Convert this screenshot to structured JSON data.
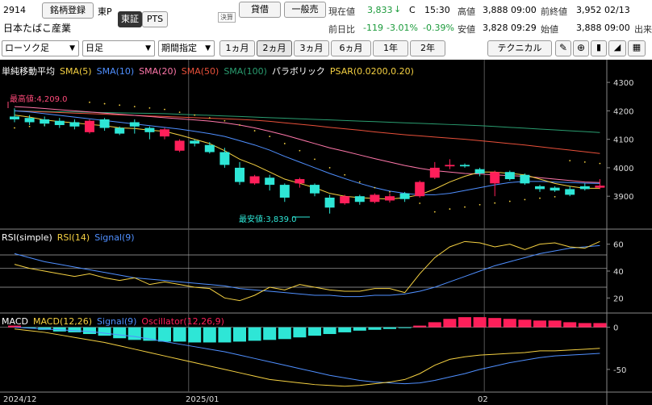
{
  "header": {
    "code": "2914",
    "search_button": "銘柄登録",
    "exchange_label": "東P",
    "exchange_tabs": [
      "東証",
      "PTS"
    ],
    "settlement_badge": "決算",
    "name": "日本たばこ産業",
    "lending_button": "貸借",
    "general_button": "一般売",
    "current_price_label": "現在値",
    "current_price": "3,833",
    "current_arrow": "↓",
    "current_flag": "C",
    "current_time": "15:30",
    "change_label": "前日比",
    "change_value": "-119",
    "change_pct": "-3.01%",
    "high_label": "高値",
    "high_value": "3,888 09:00",
    "low_label": "安値",
    "low_value": "3,828 09:29",
    "low_pct": "-0.39%",
    "prev_close_label": "前終値",
    "prev_close_value": "3,952 02/13",
    "open_label": "始値",
    "open_value": "3,888 09:00",
    "volume_label": "出来"
  },
  "toolbar": {
    "chart_type": "ローソク足",
    "period_type": "日足",
    "range_mode": "期間指定",
    "ranges": [
      "1ヵ月",
      "2ヵ月",
      "3ヵ月",
      "6ヵ月",
      "1年",
      "2年"
    ],
    "active_range": 1,
    "technical_button": "テクニカル"
  },
  "colors": {
    "bull": "#ff1f5a",
    "bear": "#2ee6d6",
    "sma5": "#f5d142",
    "sma10": "#4f8fff",
    "sma20": "#ff77aa",
    "sma50": "#e8503a",
    "sma100": "#2a9d70",
    "psar": "#f5d142",
    "rsi": "#f5d142",
    "signal": "#4f8fff",
    "macd": "#f5d142",
    "oscillator": "#ff1f5a",
    "oscillator_neg": "#2ee6d6"
  },
  "legends": {
    "main_title": "単純移動平均",
    "sma5": "SMA(5)",
    "sma10": "SMA(10)",
    "sma20": "SMA(20)",
    "sma50": "SMA(50)",
    "sma100": "SMA(100)",
    "psar_title": "パラボリック",
    "psar": "PSAR(0.0200,0.20)",
    "rsi_title": "RSI(simple)",
    "rsi": "RSI(14)",
    "rsi_signal": "Signal(9)",
    "macd_title": "MACD",
    "macd": "MACD(12,26)",
    "macd_signal": "Signal(9)",
    "oscillator": "Oscillator(12,26,9)"
  },
  "annotations": {
    "max_label": "最高値:4,209.0",
    "min_label": "最安値:3,839.0"
  },
  "chart_data": [
    {
      "type": "candlestick",
      "ylim": [
        3790,
        4340
      ],
      "yticks": [
        "4300",
        "4200",
        "4100",
        "4000",
        "3900"
      ],
      "xticks": [
        "2024/12",
        "2025/01",
        "02"
      ],
      "candles": [
        {
          "o": 4180,
          "c": 4170,
          "h": 4209,
          "l": 4160
        },
        {
          "o": 4175,
          "c": 4160,
          "h": 4185,
          "l": 4150
        },
        {
          "o": 4170,
          "c": 4155,
          "h": 4180,
          "l": 4145
        },
        {
          "o": 4165,
          "c": 4150,
          "h": 4175,
          "l": 4140
        },
        {
          "o": 4160,
          "c": 4145,
          "h": 4170,
          "l": 4135
        },
        {
          "o": 4125,
          "c": 4165,
          "h": 4170,
          "l": 4120
        },
        {
          "o": 4170,
          "c": 4140,
          "h": 4175,
          "l": 4130
        },
        {
          "o": 4140,
          "c": 4120,
          "h": 4145,
          "l": 4115
        },
        {
          "o": 4160,
          "c": 4145,
          "h": 4170,
          "l": 4120
        },
        {
          "o": 4140,
          "c": 4125,
          "h": 4145,
          "l": 4100
        },
        {
          "o": 4110,
          "c": 4135,
          "h": 4140,
          "l": 4100
        },
        {
          "o": 4060,
          "c": 4095,
          "h": 4100,
          "l": 4055
        },
        {
          "o": 4095,
          "c": 4085,
          "h": 4100,
          "l": 4075
        },
        {
          "o": 4080,
          "c": 4055,
          "h": 4090,
          "l": 4050
        },
        {
          "o": 4055,
          "c": 4010,
          "h": 4070,
          "l": 4000
        },
        {
          "o": 4000,
          "c": 3950,
          "h": 4020,
          "l": 3940
        },
        {
          "o": 3945,
          "c": 3970,
          "h": 3975,
          "l": 3940
        },
        {
          "o": 3965,
          "c": 3940,
          "h": 3975,
          "l": 3920
        },
        {
          "o": 3940,
          "c": 3895,
          "h": 3945,
          "l": 3880
        },
        {
          "o": 3945,
          "c": 3960,
          "h": 3965,
          "l": 3930
        },
        {
          "o": 3940,
          "c": 3910,
          "h": 3945,
          "l": 3900
        },
        {
          "o": 3895,
          "c": 3860,
          "h": 3905,
          "l": 3839
        },
        {
          "o": 3875,
          "c": 3900,
          "h": 3905,
          "l": 3870
        },
        {
          "o": 3900,
          "c": 3880,
          "h": 3905,
          "l": 3870
        },
        {
          "o": 3880,
          "c": 3905,
          "h": 3910,
          "l": 3875
        },
        {
          "o": 3885,
          "c": 3900,
          "h": 3910,
          "l": 3878
        },
        {
          "o": 3910,
          "c": 3890,
          "h": 3915,
          "l": 3880
        },
        {
          "o": 3900,
          "c": 3950,
          "h": 3955,
          "l": 3895
        },
        {
          "o": 3965,
          "c": 4000,
          "h": 4020,
          "l": 3960
        },
        {
          "o": 4005,
          "c": 4010,
          "h": 4030,
          "l": 3995
        },
        {
          "o": 4010,
          "c": 4005,
          "h": 4015,
          "l": 4000
        },
        {
          "o": 3995,
          "c": 3980,
          "h": 4000,
          "l": 3970
        },
        {
          "o": 3945,
          "c": 3985,
          "h": 3990,
          "l": 3900
        },
        {
          "o": 3985,
          "c": 3960,
          "h": 3990,
          "l": 3955
        },
        {
          "o": 3975,
          "c": 3945,
          "h": 3980,
          "l": 3940
        },
        {
          "o": 3935,
          "c": 3925,
          "h": 3940,
          "l": 3915
        },
        {
          "o": 3930,
          "c": 3920,
          "h": 3935,
          "l": 3915
        },
        {
          "o": 3925,
          "c": 3905,
          "h": 3935,
          "l": 3900
        },
        {
          "o": 3935,
          "c": 3925,
          "h": 3945,
          "l": 3920
        },
        {
          "o": 3930,
          "c": 3935,
          "h": 3960,
          "l": 3925
        }
      ],
      "sma5": [
        4185,
        4178,
        4168,
        4162,
        4158,
        4152,
        4148,
        4140,
        4138,
        4132,
        4128,
        4115,
        4100,
        4085,
        4060,
        4030,
        4010,
        3985,
        3960,
        3945,
        3930,
        3910,
        3900,
        3895,
        3892,
        3890,
        3895,
        3905,
        3925,
        3950,
        3970,
        3985,
        3985,
        3980,
        3975,
        3960,
        3945,
        3935,
        3928,
        3928
      ],
      "sma10": [
        4200,
        4196,
        4190,
        4184,
        4178,
        4172,
        4166,
        4160,
        4154,
        4148,
        4142,
        4136,
        4128,
        4120,
        4110,
        4095,
        4080,
        4062,
        4040,
        4020,
        4000,
        3980,
        3962,
        3945,
        3930,
        3918,
        3910,
        3905,
        3905,
        3910,
        3920,
        3930,
        3940,
        3948,
        3952,
        3952,
        3950,
        3948,
        3946,
        3945
      ],
      "sma20": [
        4215,
        4212,
        4208,
        4204,
        4200,
        4196,
        4192,
        4188,
        4184,
        4180,
        4176,
        4172,
        4168,
        4164,
        4158,
        4150,
        4140,
        4128,
        4115,
        4100,
        4085,
        4070,
        4058,
        4045,
        4032,
        4020,
        4008,
        3998,
        3990,
        3985,
        3980,
        3978,
        3975,
        3972,
        3970,
        3965,
        3960,
        3955,
        3950,
        3948
      ],
      "sma50": [
        4200,
        4198,
        4196,
        4194,
        4192,
        4190,
        4188,
        4186,
        4184,
        4182,
        4180,
        4178,
        4176,
        4174,
        4172,
        4170,
        4167,
        4163,
        4158,
        4153,
        4148,
        4142,
        4137,
        4132,
        4126,
        4121,
        4116,
        4112,
        4108,
        4104,
        4100,
        4095,
        4090,
        4085,
        4080,
        4074,
        4068,
        4062,
        4056,
        4050
      ],
      "sma100": [
        4200,
        4199,
        4198,
        4197,
        4196,
        4195,
        4194,
        4193,
        4192,
        4191,
        4190,
        4188,
        4186,
        4184,
        4182,
        4180,
        4178,
        4176,
        4174,
        4172,
        4170,
        4168,
        4166,
        4164,
        4162,
        4160,
        4158,
        4156,
        4154,
        4152,
        4150,
        4148,
        4145,
        4142,
        4139,
        4136,
        4133,
        4130,
        4127,
        4124
      ],
      "psar": [
        4140,
        4145,
        4150,
        4155,
        4160,
        4230,
        4225,
        4220,
        4215,
        4210,
        4205,
        4195,
        4185,
        4175,
        4165,
        4150,
        4130,
        4110,
        4085,
        4060,
        4030,
        4000,
        3975,
        3950,
        3930,
        3915,
        3900,
        3875,
        3845,
        3855,
        3862,
        3870,
        3876,
        3882,
        3888,
        3893,
        3898,
        4025,
        4020,
        4015
      ]
    },
    {
      "type": "line",
      "title": "RSI(simple)",
      "ylim": [
        10,
        70
      ],
      "yticks": [
        "60",
        "40",
        "20"
      ],
      "series": [
        {
          "name": "RSI(14)",
          "values": [
            45,
            42,
            40,
            38,
            36,
            38,
            35,
            33,
            35,
            30,
            32,
            30,
            28,
            27,
            20,
            18,
            22,
            28,
            26,
            30,
            28,
            26,
            25,
            25,
            27,
            27,
            24,
            38,
            50,
            58,
            62,
            61,
            58,
            60,
            56,
            60,
            61,
            58,
            57,
            62
          ]
        },
        {
          "name": "Signal(9)",
          "values": [
            53,
            50,
            47,
            45,
            43,
            41,
            39,
            37,
            35,
            34,
            33,
            32,
            31,
            30,
            29,
            27,
            26,
            25,
            24,
            23,
            22,
            22,
            21,
            21,
            22,
            22,
            23,
            25,
            28,
            32,
            36,
            40,
            44,
            47,
            50,
            53,
            55,
            57,
            58,
            59
          ]
        }
      ]
    },
    {
      "type": "bar",
      "title": "MACD",
      "ylim": [
        -75,
        15
      ],
      "yticks": [
        "0",
        "-50"
      ],
      "oscillator": [
        2,
        -1,
        -3,
        -5,
        -6,
        -8,
        -10,
        -13,
        -15,
        -16,
        -17,
        -17,
        -18,
        -18,
        -18,
        -17,
        -16,
        -15,
        -14,
        -12,
        -10,
        -8,
        -6,
        -4,
        -3,
        -2,
        -1,
        2,
        6,
        10,
        12,
        12,
        11,
        10,
        9,
        8,
        8,
        6,
        5,
        5
      ],
      "series": [
        {
          "name": "MACD(12,26)",
          "values": [
            -2,
            -4,
            -6,
            -9,
            -12,
            -15,
            -18,
            -22,
            -26,
            -30,
            -34,
            -38,
            -42,
            -46,
            -50,
            -54,
            -58,
            -62,
            -64,
            -66,
            -68,
            -69,
            -70,
            -69,
            -67,
            -65,
            -62,
            -55,
            -45,
            -38,
            -35,
            -33,
            -32,
            -31,
            -30,
            -28,
            -28,
            -27,
            -26,
            -25
          ]
        },
        {
          "name": "Signal(9)",
          "values": [
            0,
            -1,
            -2,
            -3,
            -4,
            -5,
            -7,
            -9,
            -11,
            -14,
            -17,
            -20,
            -23,
            -26,
            -29,
            -33,
            -37,
            -41,
            -45,
            -49,
            -53,
            -57,
            -60,
            -63,
            -65,
            -66,
            -67,
            -66,
            -63,
            -59,
            -55,
            -50,
            -46,
            -42,
            -39,
            -36,
            -34,
            -33,
            -32,
            -31
          ]
        }
      ]
    }
  ]
}
